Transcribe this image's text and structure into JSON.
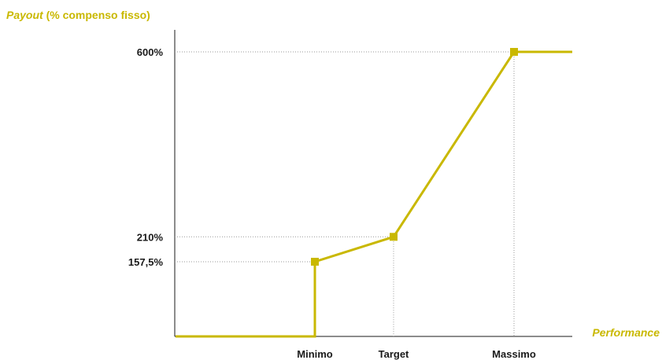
{
  "chart_data": {
    "type": "line",
    "ylabel_italic": "Payout",
    "ylabel_rest": " (% compenso fisso)",
    "xlabel": "Performance",
    "x_categories": [
      "Minimo",
      "Target",
      "Massimo"
    ],
    "y_ticks": [
      {
        "value": 157.5,
        "label": "157,5%"
      },
      {
        "value": 210,
        "label": "210%"
      },
      {
        "value": 600,
        "label": "600%"
      }
    ],
    "ylim": [
      0,
      640
    ],
    "series": [
      {
        "points": [
          {
            "x": "start",
            "y": 0
          },
          {
            "x": "Minimo",
            "y": 0
          },
          {
            "x": "Minimo",
            "y": 157.5
          },
          {
            "x": "Target",
            "y": 210
          },
          {
            "x": "Massimo",
            "y": 600
          },
          {
            "x": "end",
            "y": 600
          }
        ]
      }
    ],
    "markers": [
      {
        "x": "Minimo",
        "y": 157.5
      },
      {
        "x": "Target",
        "y": 210
      },
      {
        "x": "Massimo",
        "y": 600
      }
    ],
    "grid": "dotted reference lines at marked values",
    "colors": {
      "line": "#c9b800",
      "axis": "#1a1a1a",
      "grid": "#9a9a9a",
      "accent_text": "#c9b800"
    }
  }
}
